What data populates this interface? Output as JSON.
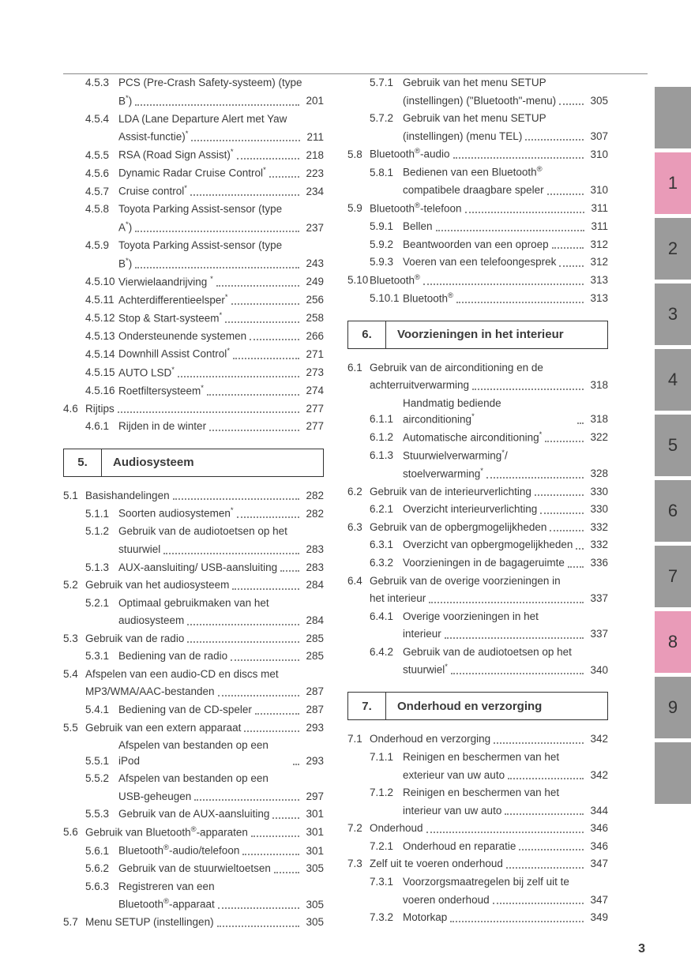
{
  "page_number": "3",
  "tabs": [
    {
      "label": "",
      "color": "#9b9b9b"
    },
    {
      "label": "1",
      "color": "#e99bb8"
    },
    {
      "label": "2",
      "color": "#9b9b9b"
    },
    {
      "label": "3",
      "color": "#9b9b9b"
    },
    {
      "label": "4",
      "color": "#9b9b9b"
    },
    {
      "label": "5",
      "color": "#9b9b9b"
    },
    {
      "label": "6",
      "color": "#9b9b9b"
    },
    {
      "label": "7",
      "color": "#9b9b9b"
    },
    {
      "label": "8",
      "color": "#e99bb8"
    },
    {
      "label": "9",
      "color": "#9b9b9b"
    },
    {
      "label": "",
      "color": "#9b9b9b"
    }
  ],
  "sections": [
    {
      "num": "5.",
      "title": "Audiosysteem"
    },
    {
      "num": "6.",
      "title": "Voorzieningen in het interieur"
    },
    {
      "num": "7.",
      "title": "Onderhoud en verzorging"
    }
  ],
  "left": [
    {
      "lvl": 2,
      "num": "4.5.3",
      "text": "PCS (Pre-Crash Safety-systeem) (type B*)",
      "page": "201"
    },
    {
      "lvl": 2,
      "num": "4.5.4",
      "text": "LDA (Lane Departure Alert met Yaw Assist-functie)*",
      "page": "211"
    },
    {
      "lvl": 2,
      "num": "4.5.5",
      "text": "RSA (Road Sign Assist)*",
      "page": "218"
    },
    {
      "lvl": 2,
      "num": "4.5.6",
      "text": "Dynamic Radar Cruise Control*",
      "page": "223"
    },
    {
      "lvl": 2,
      "num": "4.5.7",
      "text": "Cruise control*",
      "page": "234"
    },
    {
      "lvl": 2,
      "num": "4.5.8",
      "text": "Toyota Parking Assist-sensor (type A*)",
      "page": "237"
    },
    {
      "lvl": 2,
      "num": "4.5.9",
      "text": "Toyota Parking Assist-sensor (type B*)",
      "page": "243"
    },
    {
      "lvl": 2,
      "num": "4.5.10",
      "text": "Vierwielaandrijving *",
      "page": "249"
    },
    {
      "lvl": 2,
      "num": "4.5.11",
      "text": "Achterdifferentieelsper*",
      "page": "256"
    },
    {
      "lvl": 2,
      "num": "4.5.12",
      "text": "Stop & Start-systeem*",
      "page": "258"
    },
    {
      "lvl": 2,
      "num": "4.5.13",
      "text": "Ondersteunende systemen",
      "page": "266"
    },
    {
      "lvl": 2,
      "num": "4.5.14",
      "text": "Downhill Assist Control*",
      "page": "271"
    },
    {
      "lvl": 2,
      "num": "4.5.15",
      "text": "AUTO LSD*",
      "page": "273"
    },
    {
      "lvl": 2,
      "num": "4.5.16",
      "text": "Roetfiltersysteem*",
      "page": "274"
    },
    {
      "lvl": 1,
      "num": "4.6",
      "text": "Rijtips",
      "page": "277"
    },
    {
      "lvl": 2,
      "num": "4.6.1",
      "text": "Rijden in de winter",
      "page": "277"
    },
    {
      "section": 0
    },
    {
      "lvl": 1,
      "num": "5.1",
      "text": "Basishandelingen",
      "page": "282"
    },
    {
      "lvl": 2,
      "num": "5.1.1",
      "text": "Soorten audiosystemen*",
      "page": "282"
    },
    {
      "lvl": 2,
      "num": "5.1.2",
      "text": "Gebruik van de audiotoetsen op het stuurwiel",
      "page": "283"
    },
    {
      "lvl": 2,
      "num": "5.1.3",
      "text": "AUX-aansluiting/ USB-aansluiting",
      "page": "283"
    },
    {
      "lvl": 1,
      "num": "5.2",
      "text": "Gebruik van het audiosysteem",
      "page": "284"
    },
    {
      "lvl": 2,
      "num": "5.2.1",
      "text": "Optimaal gebruikmaken van het audiosysteem",
      "page": "284"
    },
    {
      "lvl": 1,
      "num": "5.3",
      "text": "Gebruik van de radio",
      "page": "285"
    },
    {
      "lvl": 2,
      "num": "5.3.1",
      "text": "Bediening van de radio",
      "page": "285"
    },
    {
      "lvl": 1,
      "num": "5.4",
      "text": "Afspelen van een audio-CD en discs met MP3/WMA/AAC-bestanden",
      "page": "287"
    },
    {
      "lvl": 2,
      "num": "5.4.1",
      "text": "Bediening van de CD-speler",
      "page": "287"
    },
    {
      "lvl": 1,
      "num": "5.5",
      "text": "Gebruik van een extern apparaat",
      "page": "293"
    },
    {
      "lvl": 2,
      "num": "5.5.1",
      "text": "Afspelen van bestanden op een iPod",
      "page": "293"
    },
    {
      "lvl": 2,
      "num": "5.5.2",
      "text": "Afspelen van bestanden op een USB-geheugen",
      "page": "297"
    },
    {
      "lvl": 2,
      "num": "5.5.3",
      "text": "Gebruik van de AUX-aansluiting",
      "page": "301"
    },
    {
      "lvl": 1,
      "num": "5.6",
      "text": "Gebruik van Bluetooth®-apparaten",
      "page": "301"
    },
    {
      "lvl": 2,
      "num": "5.6.1",
      "text": "Bluetooth®-audio/telefoon",
      "page": "301"
    },
    {
      "lvl": 2,
      "num": "5.6.2",
      "text": "Gebruik van de stuurwieltoetsen",
      "page": "305"
    },
    {
      "lvl": 2,
      "num": "5.6.3",
      "text": "Registreren van een Bluetooth®-apparaat",
      "page": "305"
    },
    {
      "lvl": 1,
      "num": "5.7",
      "text": "Menu SETUP (instellingen)",
      "page": "305"
    }
  ],
  "right": [
    {
      "lvl": 2,
      "num": "5.7.1",
      "text": "Gebruik van het menu SETUP (instellingen) (\"Bluetooth\"-menu)",
      "page": "305"
    },
    {
      "lvl": 2,
      "num": "5.7.2",
      "text": "Gebruik van het menu SETUP (instellingen) (menu TEL)",
      "page": "307"
    },
    {
      "lvl": 1,
      "num": "5.8",
      "text": "Bluetooth®-audio",
      "page": "310"
    },
    {
      "lvl": 2,
      "num": "5.8.1",
      "text": "Bedienen van een Bluetooth® compatibele draagbare speler",
      "page": "310"
    },
    {
      "lvl": 1,
      "num": "5.9",
      "text": "Bluetooth®-telefoon",
      "page": "311"
    },
    {
      "lvl": 2,
      "num": "5.9.1",
      "text": "Bellen",
      "page": "311"
    },
    {
      "lvl": 2,
      "num": "5.9.2",
      "text": "Beantwoorden van een oproep",
      "page": "312"
    },
    {
      "lvl": 2,
      "num": "5.9.3",
      "text": "Voeren van een telefoongesprek",
      "page": "312"
    },
    {
      "lvl": 1,
      "num": "5.10",
      "text": "Bluetooth®",
      "page": "313"
    },
    {
      "lvl": 2,
      "num": "5.10.1",
      "text": "Bluetooth®",
      "page": "313"
    },
    {
      "section": 1
    },
    {
      "lvl": 1,
      "num": "6.1",
      "text": "Gebruik van de airconditioning en de achterruitverwarming",
      "page": "318"
    },
    {
      "lvl": 2,
      "num": "6.1.1",
      "text": "Handmatig bediende airconditioning*",
      "page": "318"
    },
    {
      "lvl": 2,
      "num": "6.1.2",
      "text": "Automatische airconditioning*",
      "page": "322"
    },
    {
      "lvl": 2,
      "num": "6.1.3",
      "text": "Stuurwielverwarming*/ stoelverwarming*",
      "page": "328"
    },
    {
      "lvl": 1,
      "num": "6.2",
      "text": "Gebruik van de interieurverlichting",
      "page": "330"
    },
    {
      "lvl": 2,
      "num": "6.2.1",
      "text": "Overzicht interieurverlichting",
      "page": "330"
    },
    {
      "lvl": 1,
      "num": "6.3",
      "text": "Gebruik van de opbergmogelijkheden",
      "page": "332"
    },
    {
      "lvl": 2,
      "num": "6.3.1",
      "text": "Overzicht van opbergmogelijkheden",
      "page": "332"
    },
    {
      "lvl": 2,
      "num": "6.3.2",
      "text": "Voorzieningen in de bagageruimte",
      "page": "336"
    },
    {
      "lvl": 1,
      "num": "6.4",
      "text": "Gebruik van de overige voorzieningen in het interieur",
      "page": "337"
    },
    {
      "lvl": 2,
      "num": "6.4.1",
      "text": "Overige voorzieningen in het interieur",
      "page": "337"
    },
    {
      "lvl": 2,
      "num": "6.4.2",
      "text": "Gebruik van de audiotoetsen op het stuurwiel*",
      "page": "340"
    },
    {
      "section": 2
    },
    {
      "lvl": 1,
      "num": "7.1",
      "text": "Onderhoud en verzorging",
      "page": "342"
    },
    {
      "lvl": 2,
      "num": "7.1.1",
      "text": "Reinigen en beschermen van het exterieur van uw auto",
      "page": "342"
    },
    {
      "lvl": 2,
      "num": "7.1.2",
      "text": "Reinigen en beschermen van het interieur van uw auto",
      "page": "344"
    },
    {
      "lvl": 1,
      "num": "7.2",
      "text": "Onderhoud",
      "page": "346"
    },
    {
      "lvl": 2,
      "num": "7.2.1",
      "text": "Onderhoud en reparatie",
      "page": "346"
    },
    {
      "lvl": 1,
      "num": "7.3",
      "text": "Zelf uit te voeren onderhoud",
      "page": "347"
    },
    {
      "lvl": 2,
      "num": "7.3.1",
      "text": "Voorzorgsmaatregelen bij zelf uit te voeren onderhoud",
      "page": "347"
    },
    {
      "lvl": 2,
      "num": "7.3.2",
      "text": "Motorkap",
      "page": "349"
    }
  ]
}
